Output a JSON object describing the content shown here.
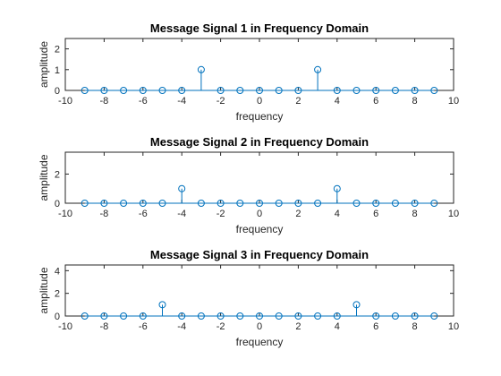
{
  "chart_data": [
    {
      "type": "stem",
      "title": "Message Signal 1 in Frequency Domain",
      "xlabel": "frequency",
      "ylabel": "amplitude",
      "xlim": [
        -10,
        10
      ],
      "ylim": [
        0,
        2.5
      ],
      "xticks": [
        -10,
        -8,
        -6,
        -4,
        -2,
        0,
        2,
        4,
        6,
        8,
        10
      ],
      "yticks": [
        0,
        1,
        2
      ],
      "x": [
        -9,
        -8,
        -7,
        -6,
        -5,
        -4,
        -3,
        -2,
        -1,
        0,
        1,
        2,
        3,
        4,
        5,
        6,
        7,
        8,
        9
      ],
      "y": [
        0,
        0,
        0,
        0,
        0,
        0,
        1,
        0,
        0,
        0,
        0,
        0,
        1,
        0,
        0,
        0,
        0,
        0,
        0
      ],
      "grid": false
    },
    {
      "type": "stem",
      "title": "Message Signal 2 in Frequency Domain",
      "xlabel": "frequency",
      "ylabel": "amplitude",
      "xlim": [
        -10,
        10
      ],
      "ylim": [
        0,
        3.5
      ],
      "xticks": [
        -10,
        -8,
        -6,
        -4,
        -2,
        0,
        2,
        4,
        6,
        8,
        10
      ],
      "yticks": [
        0,
        2
      ],
      "x": [
        -9,
        -8,
        -7,
        -6,
        -5,
        -4,
        -3,
        -2,
        -1,
        0,
        1,
        2,
        3,
        4,
        5,
        6,
        7,
        8,
        9
      ],
      "y": [
        0,
        0,
        0,
        0,
        0,
        1,
        0,
        0,
        0,
        0,
        0,
        0,
        0,
        1,
        0,
        0,
        0,
        0,
        0
      ],
      "grid": false
    },
    {
      "type": "stem",
      "title": "Message Signal 3 in Frequency Domain",
      "xlabel": "frequency",
      "ylabel": "amplitude",
      "xlim": [
        -10,
        10
      ],
      "ylim": [
        0,
        4.5
      ],
      "xticks": [
        -10,
        -8,
        -6,
        -4,
        -2,
        0,
        2,
        4,
        6,
        8,
        10
      ],
      "yticks": [
        0,
        2,
        4
      ],
      "x": [
        -9,
        -8,
        -7,
        -6,
        -5,
        -4,
        -3,
        -2,
        -1,
        0,
        1,
        2,
        3,
        4,
        5,
        6,
        7,
        8,
        9
      ],
      "y": [
        0,
        0,
        0,
        0,
        1,
        0,
        0,
        0,
        0,
        0,
        0,
        0,
        0,
        0,
        1,
        0,
        0,
        0,
        0
      ],
      "grid": false
    }
  ],
  "colors": {
    "series": "#0072bd",
    "axes": "#262626",
    "title": "#000000",
    "background": "#ffffff"
  }
}
